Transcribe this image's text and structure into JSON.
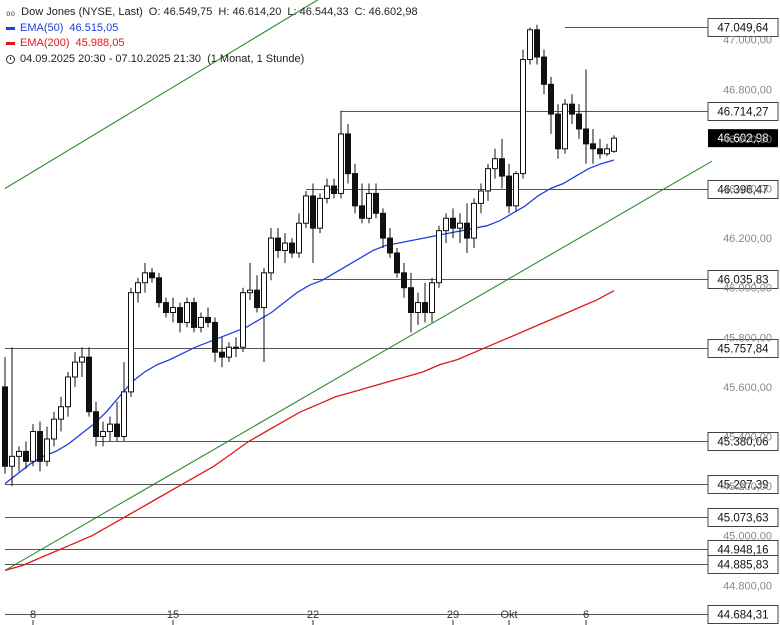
{
  "legend": {
    "symbol_prefix": "₀₀",
    "name": "Dow Jones (NYSE, Last)",
    "open": "O: 46.549,75",
    "high": "H: 46.614,20",
    "low": "L: 46.544,33",
    "close": "C: 46.602,98",
    "ema50_label": "EMA(50)",
    "ema50_value": "46.515,05",
    "ema200_label": "EMA(200)",
    "ema200_value": "45.988,05",
    "period": "04.09.2025 20:30 - 07.10.2025 21:30",
    "interval": "(1 Monat, 1 Stunde)"
  },
  "colors": {
    "candle": "#111111",
    "ema50": "#1f3fe0",
    "ema200": "#e01818",
    "trend": "#2e8b2e",
    "level": "#555555",
    "price_bg": "#000000"
  },
  "chart_data": {
    "type": "candlestick",
    "ylim": [
      44640,
      47160
    ],
    "y_ticks": [
      {
        "value": 47000,
        "label": "47.000,00"
      },
      {
        "value": 46800,
        "label": "46.800,00"
      },
      {
        "value": 46600,
        "label": "46.600,00"
      },
      {
        "value": 46400,
        "label": "46.400,00"
      },
      {
        "value": 46200,
        "label": "46.200,00"
      },
      {
        "value": 46000,
        "label": "46.000,00"
      },
      {
        "value": 45800,
        "label": "45.800,00"
      },
      {
        "value": 45600,
        "label": "45.600,00"
      },
      {
        "value": 45400,
        "label": "45.400,00"
      },
      {
        "value": 45200,
        "label": "45.200,00"
      },
      {
        "value": 45000,
        "label": "45.000,00"
      },
      {
        "value": 44800,
        "label": "44.800,00"
      }
    ],
    "x_ticks": [
      {
        "index": 4,
        "label": "8"
      },
      {
        "index": 24,
        "label": "15"
      },
      {
        "index": 44,
        "label": "22"
      },
      {
        "index": 64,
        "label": "29"
      },
      {
        "index": 72,
        "label": "Okt"
      },
      {
        "index": 83,
        "label": "6"
      }
    ],
    "levels": [
      {
        "value": 47049.64,
        "label": "47.049,64",
        "from_index": 80
      },
      {
        "value": 46714.27,
        "label": "46.714,27",
        "from_index": 48
      },
      {
        "value": 46396.47,
        "label": "46.396,47",
        "from_index": 43
      },
      {
        "value": 46035.83,
        "label": "46.035,83",
        "from_index": 44
      },
      {
        "value": 45757.84,
        "label": "45.757,84",
        "from_index": 0
      },
      {
        "value": 45380.06,
        "label": "45.380,06",
        "from_index": 13
      },
      {
        "value": 45207.39,
        "label": "45.207,39",
        "from_index": 0
      },
      {
        "value": 45073.63,
        "label": "45.073,63",
        "from_index": 0
      },
      {
        "value": 44948.16,
        "label": "44.948,16",
        "from_index": 0
      },
      {
        "value": 44885.83,
        "label": "44.885,83",
        "from_index": 0
      },
      {
        "value": 44684.31,
        "label": "44.684,31",
        "from_index": 0
      }
    ],
    "last_price": {
      "value": 46602.98,
      "label": "46.602,98"
    },
    "trendlines": [
      {
        "from": {
          "index": 0,
          "value": 46400
        },
        "to": {
          "index": 47,
          "value": 47200
        }
      },
      {
        "from": {
          "index": 0,
          "value": 44860
        },
        "to": {
          "index": 101,
          "value": 46510
        }
      }
    ],
    "candles": [
      [
        45600,
        45720,
        45250,
        45280
      ],
      [
        45280,
        45760,
        45200,
        45320
      ],
      [
        45320,
        45360,
        45260,
        45340
      ],
      [
        45340,
        45380,
        45270,
        45300
      ],
      [
        45300,
        45450,
        45280,
        45420
      ],
      [
        45420,
        45460,
        45260,
        45300
      ],
      [
        45300,
        45440,
        45280,
        45390
      ],
      [
        45390,
        45500,
        45360,
        45470
      ],
      [
        45470,
        45560,
        45420,
        45520
      ],
      [
        45520,
        45660,
        45480,
        45640
      ],
      [
        45640,
        45740,
        45600,
        45700
      ],
      [
        45700,
        45760,
        45640,
        45720
      ],
      [
        45720,
        45760,
        45480,
        45500
      ],
      [
        45500,
        45540,
        45360,
        45400
      ],
      [
        45400,
        45460,
        45360,
        45420
      ],
      [
        45420,
        45480,
        45380,
        45450
      ],
      [
        45450,
        45540,
        45380,
        45400
      ],
      [
        45400,
        45700,
        45380,
        45580
      ],
      [
        45580,
        46000,
        45560,
        45980
      ],
      [
        45980,
        46040,
        45940,
        46020
      ],
      [
        46020,
        46100,
        45980,
        46060
      ],
      [
        46060,
        46080,
        46020,
        46040
      ],
      [
        46040,
        46060,
        45920,
        45940
      ],
      [
        45940,
        45960,
        45880,
        45900
      ],
      [
        45900,
        45960,
        45860,
        45920
      ],
      [
        45920,
        45940,
        45820,
        45860
      ],
      [
        45860,
        45960,
        45840,
        45940
      ],
      [
        45940,
        45960,
        45820,
        45840
      ],
      [
        45840,
        45900,
        45820,
        45880
      ],
      [
        45880,
        45920,
        45840,
        45860
      ],
      [
        45860,
        45880,
        45700,
        45740
      ],
      [
        45740,
        45800,
        45680,
        45720
      ],
      [
        45720,
        45780,
        45700,
        45760
      ],
      [
        45760,
        45800,
        45720,
        45760
      ],
      [
        45760,
        46000,
        45740,
        45980
      ],
      [
        45980,
        46100,
        45950,
        45990
      ],
      [
        45990,
        46050,
        45900,
        45920
      ],
      [
        45920,
        46080,
        45700,
        46060
      ],
      [
        46060,
        46240,
        46030,
        46200
      ],
      [
        46200,
        46240,
        46120,
        46150
      ],
      [
        46150,
        46220,
        46100,
        46180
      ],
      [
        46180,
        46200,
        46120,
        46140
      ],
      [
        46140,
        46300,
        46120,
        46260
      ],
      [
        46260,
        46390,
        46240,
        46370
      ],
      [
        46370,
        46420,
        46100,
        46240
      ],
      [
        46240,
        46380,
        46220,
        46360
      ],
      [
        46360,
        46440,
        46340,
        46410
      ],
      [
        46410,
        46440,
        46360,
        46380
      ],
      [
        46380,
        46714,
        46360,
        46620
      ],
      [
        46620,
        46660,
        46420,
        46460
      ],
      [
        46460,
        46500,
        46300,
        46330
      ],
      [
        46330,
        46420,
        46260,
        46280
      ],
      [
        46280,
        46420,
        46260,
        46380
      ],
      [
        46380,
        46420,
        46280,
        46300
      ],
      [
        46300,
        46320,
        46160,
        46200
      ],
      [
        46200,
        46240,
        46120,
        46140
      ],
      [
        46140,
        46160,
        46040,
        46060
      ],
      [
        46060,
        46100,
        45960,
        46000
      ],
      [
        46000,
        46060,
        45820,
        45900
      ],
      [
        45900,
        45980,
        45850,
        45940
      ],
      [
        45940,
        46020,
        45860,
        45900
      ],
      [
        45900,
        46040,
        45860,
        46020
      ],
      [
        46020,
        46250,
        46000,
        46230
      ],
      [
        46230,
        46300,
        46180,
        46280
      ],
      [
        46280,
        46320,
        46200,
        46240
      ],
      [
        46240,
        46300,
        46180,
        46260
      ],
      [
        46260,
        46340,
        46140,
        46200
      ],
      [
        46200,
        46360,
        46160,
        46340
      ],
      [
        46340,
        46420,
        46300,
        46390
      ],
      [
        46390,
        46500,
        46350,
        46480
      ],
      [
        46480,
        46560,
        46440,
        46520
      ],
      [
        46520,
        46600,
        46400,
        46450
      ],
      [
        46450,
        46500,
        46300,
        46330
      ],
      [
        46330,
        46470,
        46310,
        46460
      ],
      [
        46460,
        46960,
        46440,
        46920
      ],
      [
        46920,
        47049,
        46900,
        47040
      ],
      [
        47040,
        47060,
        46900,
        46930
      ],
      [
        46930,
        46960,
        46780,
        46820
      ],
      [
        46820,
        46850,
        46620,
        46700
      ],
      [
        46700,
        46740,
        46520,
        46560
      ],
      [
        46560,
        46760,
        46540,
        46740
      ],
      [
        46740,
        46780,
        46660,
        46700
      ],
      [
        46700,
        46740,
        46600,
        46640
      ],
      [
        46640,
        46880,
        46500,
        46580
      ],
      [
        46580,
        46640,
        46500,
        46560
      ],
      [
        46560,
        46600,
        46520,
        46540
      ],
      [
        46540,
        46580,
        46530,
        46560
      ],
      [
        46550,
        46614,
        46544,
        46603
      ]
    ],
    "series": [
      {
        "name": "EMA(50)",
        "color": "ema50",
        "values": [
          45210,
          45250,
          45290,
          45320,
          45340,
          45370,
          45410,
          45450,
          45500,
          45560,
          45620,
          45660,
          45690,
          45710,
          45735,
          45760,
          45780,
          45800,
          45820,
          45840,
          45870,
          45900,
          45940,
          45980,
          46010,
          46030,
          46060,
          46090,
          46120,
          46150,
          46170,
          46180,
          46190,
          46200,
          46210,
          46220,
          46230,
          46240,
          46250,
          46270,
          46300,
          46330,
          46370,
          46400,
          46420,
          46450,
          46480,
          46500,
          46515
        ]
      },
      {
        "name": "EMA(200)",
        "color": "ema200",
        "values": [
          44860,
          44880,
          44910,
          44940,
          44970,
          45000,
          45040,
          45080,
          45120,
          45160,
          45200,
          45240,
          45280,
          45330,
          45380,
          45420,
          45460,
          45500,
          45530,
          45560,
          45580,
          45600,
          45620,
          45640,
          45660,
          45690,
          45710,
          45740,
          45770,
          45800,
          45830,
          45860,
          45890,
          45920,
          45950,
          45988
        ]
      }
    ]
  }
}
